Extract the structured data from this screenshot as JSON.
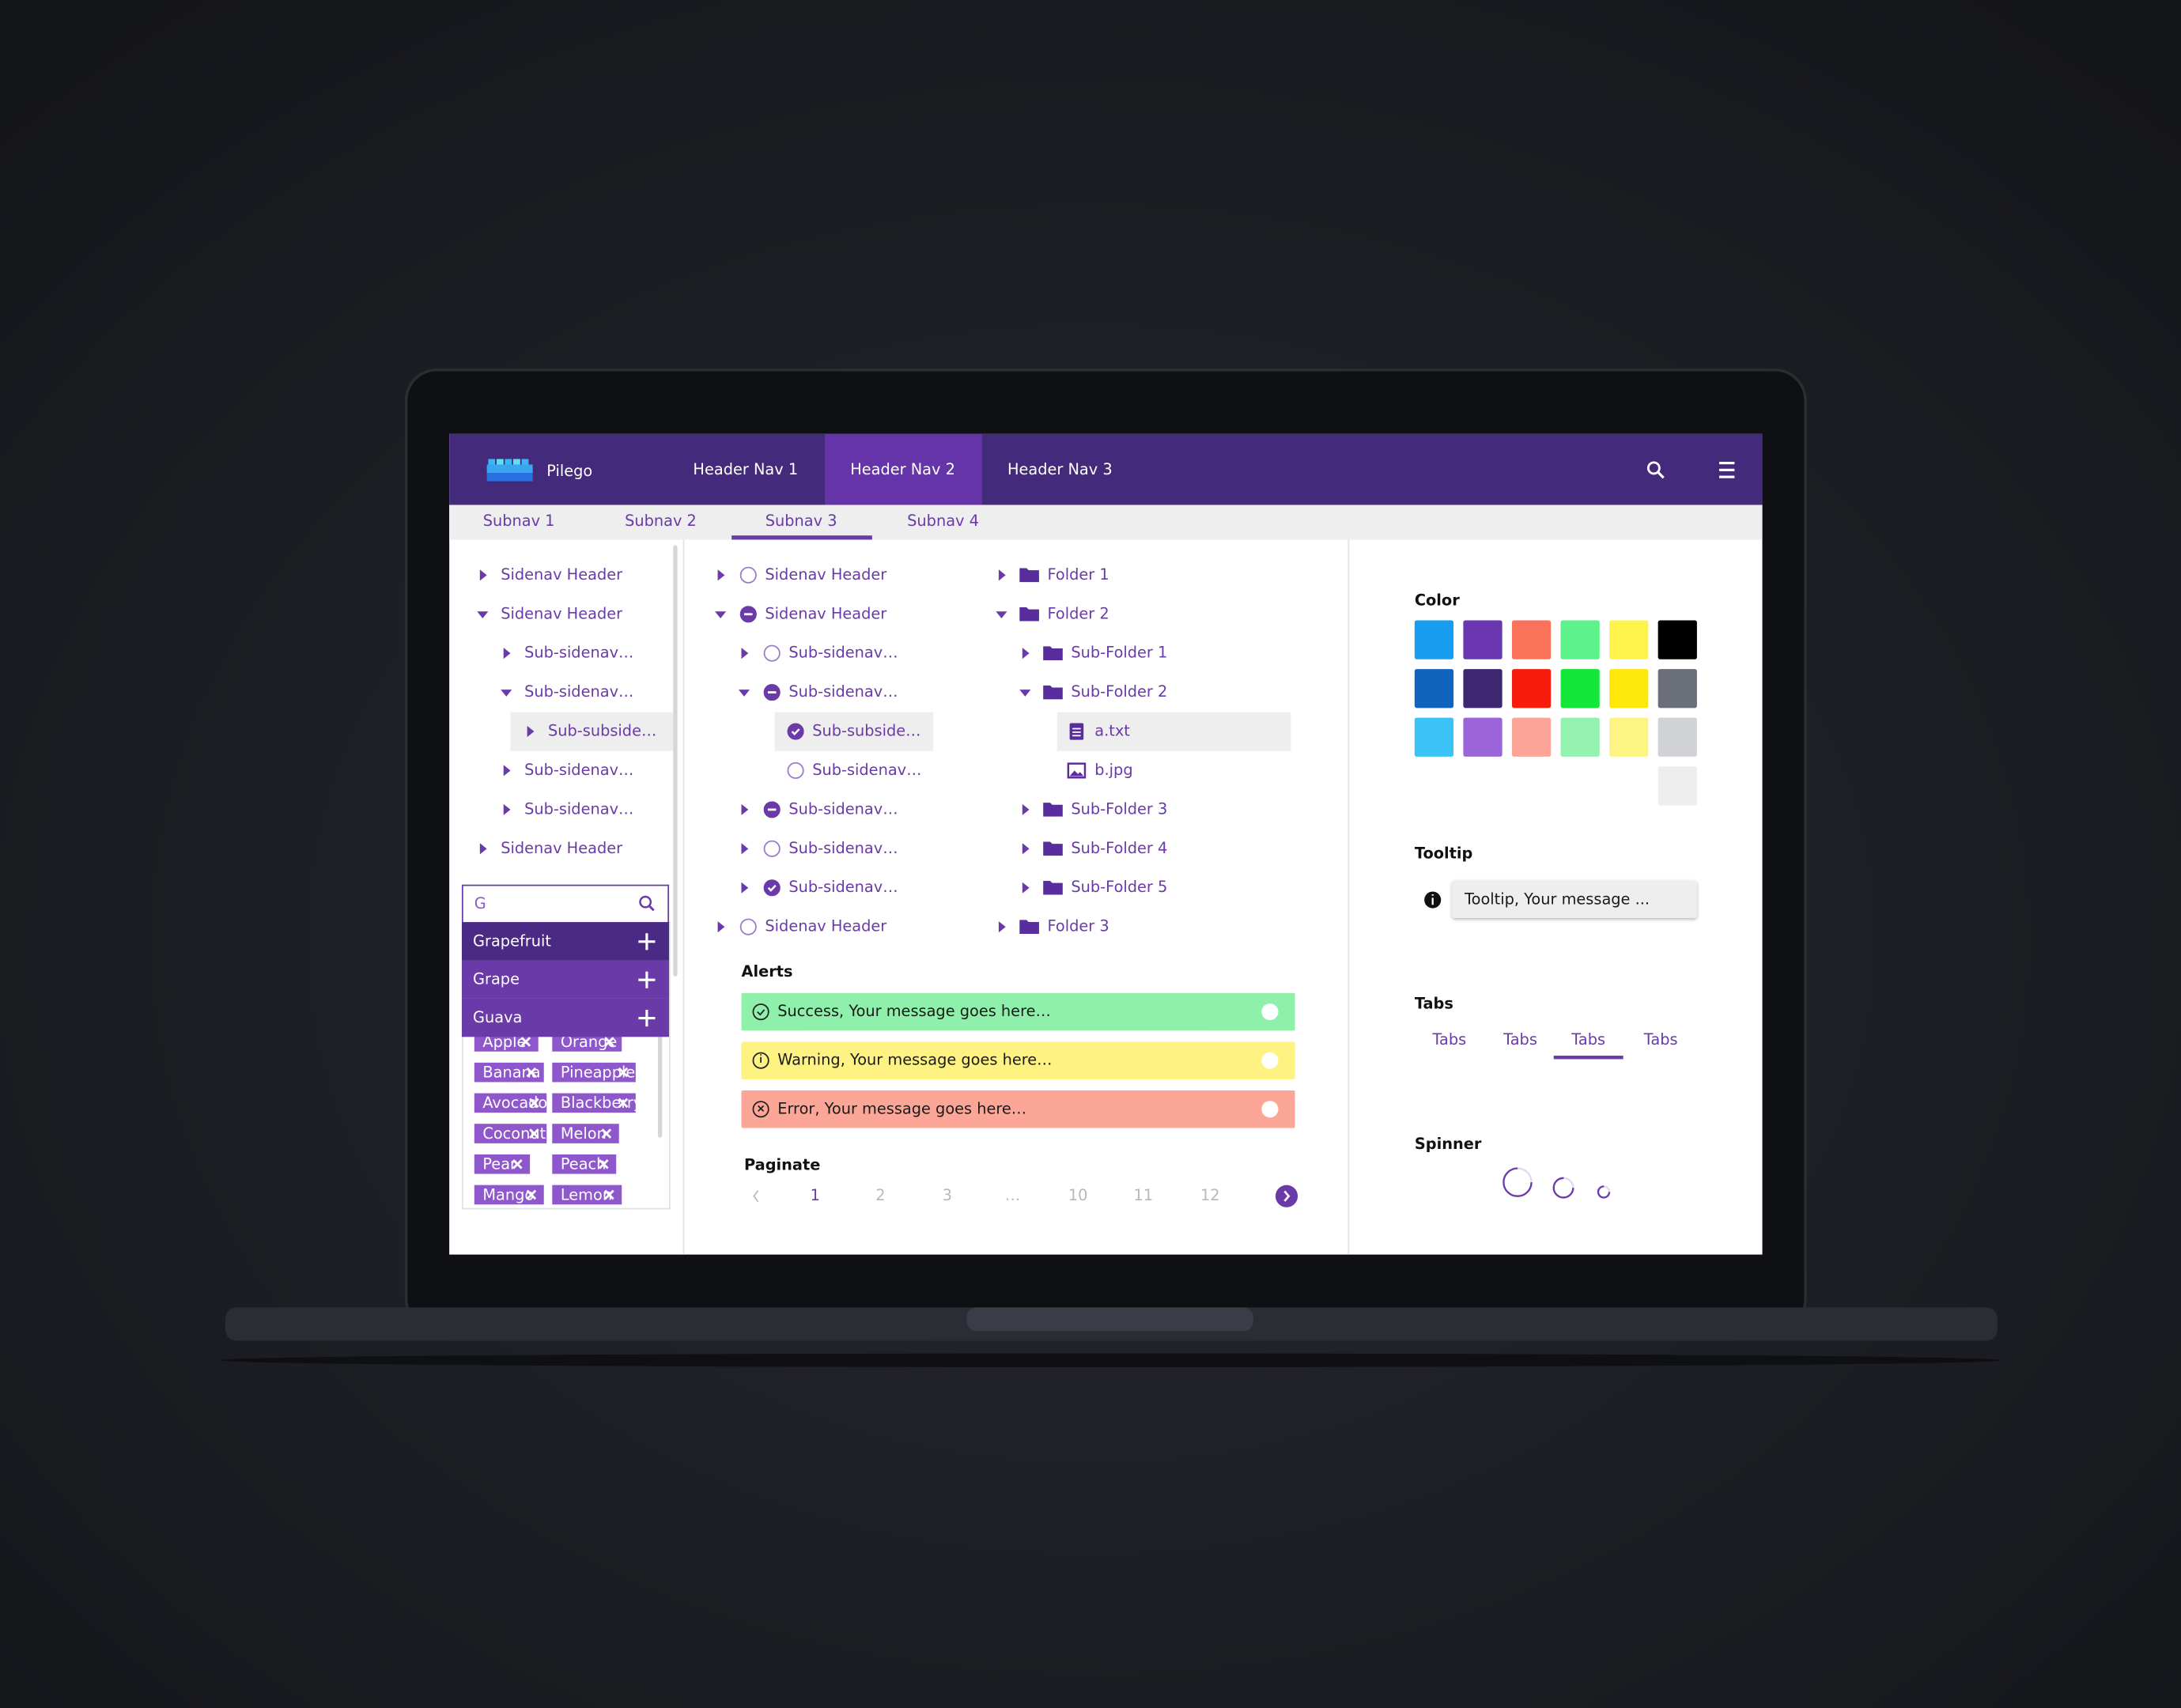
{
  "header": {
    "logo": "Pilego",
    "nav": [
      "Header Nav 1",
      "Header Nav 2",
      "Header Nav 3"
    ]
  },
  "subnav": [
    "Subnav 1",
    "Subnav 2",
    "Subnav 3",
    "Subnav 4"
  ],
  "sidenav": [
    "Sidenav Header",
    "Sidenav Header",
    "Sub-sidenav…",
    "Sub-sidenav…",
    "Sub-subside…",
    "Sub-sidenav…",
    "Sub-sidenav…",
    "Sidenav Header"
  ],
  "search": {
    "query": "G",
    "options": [
      "Grapefruit",
      "Grape",
      "Guava"
    ],
    "tags": [
      "Apple",
      "Orange",
      "Banana",
      "Pineapple",
      "Avocado",
      "Blackberry",
      "Coconut",
      "Melon",
      "Pear",
      "Peach",
      "Mango",
      "Lemon"
    ]
  },
  "checktree": [
    "Sidenav Header",
    "Sidenav Header",
    "Sub-sidenav…",
    "Sub-sidenav…",
    "Sub-subside…",
    "Sub-sidenav…",
    "Sub-sidenav…",
    "Sub-sidenav…",
    "Sub-sidenav…",
    "Sidenav Header"
  ],
  "filetree": [
    "Folder 1",
    "Folder 2",
    "Sub-Folder 1",
    "Sub-Folder 2",
    "a.txt",
    "b.jpg",
    "Sub-Folder 3",
    "Sub-Folder 4",
    "Sub-Folder 5",
    "Folder 3"
  ],
  "alerts": {
    "title": "Alerts",
    "items": [
      "Success, Your message goes here…",
      "Warning, Your message goes here…",
      "Error, Your message goes here…"
    ]
  },
  "paginate": {
    "title": "Paginate",
    "pages": [
      "1",
      "2",
      "3",
      "…",
      "10",
      "11",
      "12"
    ]
  },
  "color": {
    "title": "Color",
    "swatches": [
      [
        "#189ef0",
        "#6a37b0",
        "#fb725b",
        "#5ef28b",
        "#fef34a",
        "#000000"
      ],
      [
        "#1163bd",
        "#3e2771",
        "#f61d0d",
        "#13e83a",
        "#fde80a",
        "#6b6f7a"
      ],
      [
        "#3bc2f6",
        "#9c64d9",
        "#fca497",
        "#93f2b0",
        "#fef484",
        "#d0d2d6"
      ],
      [
        "#eeeeee"
      ]
    ]
  },
  "tooltip": {
    "title": "Tooltip",
    "text": "Tooltip, Your message ..."
  },
  "tabs": {
    "title": "Tabs",
    "items": [
      "Tabs",
      "Tabs",
      "Tabs",
      "Tabs"
    ]
  },
  "spinner": {
    "title": "Spinner"
  }
}
